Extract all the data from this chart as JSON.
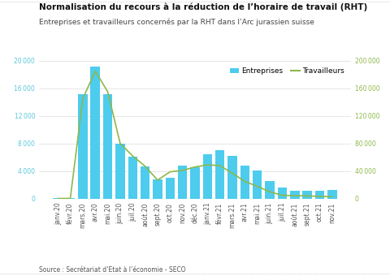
{
  "title": "Normalisation du recours à la réduction de l’horaire de travail (RHT)",
  "subtitle": "Entreprises et travailleurs concernés par la RHT dans l’Arc jurassien suisse",
  "source": "Source : Secrétariat d’Etat à l’économie - SECO",
  "labels": [
    "janv.20",
    "févr.20",
    "mars.20",
    "avr.20",
    "mai.20",
    "juin.20",
    "juil.20",
    "août.20",
    "sept.20",
    "oct.20",
    "nov.20",
    "déc.20",
    "janv.21",
    "févr.21",
    "mars.21",
    "avr.21",
    "mai.21",
    "juin.21",
    "juil.21",
    "août.21",
    "sept.21",
    "oct.21",
    "nov.21"
  ],
  "entreprises": [
    100,
    150,
    15200,
    19200,
    15200,
    8000,
    6100,
    4700,
    2800,
    3000,
    4800,
    4600,
    6400,
    7000,
    6200,
    4800,
    4100,
    2600,
    1600,
    1100,
    1100,
    1100,
    1300
  ],
  "travailleurs": [
    300,
    500,
    145000,
    185000,
    155000,
    80000,
    62000,
    47000,
    27000,
    39000,
    41000,
    46000,
    49000,
    48000,
    37000,
    25000,
    18000,
    10000,
    5000,
    4500,
    4000,
    3500,
    3000
  ],
  "bar_color": "#4DCCEE",
  "line_color": "#8DB84A",
  "left_ylim": [
    0,
    20000
  ],
  "right_ylim": [
    0,
    200000
  ],
  "left_yticks": [
    0,
    4000,
    8000,
    12000,
    16000,
    20000
  ],
  "right_yticks": [
    0,
    40000,
    80000,
    120000,
    160000,
    200000
  ],
  "title_fontsize": 7.5,
  "subtitle_fontsize": 6.5,
  "tick_fontsize": 5.5,
  "legend_fontsize": 6.5,
  "source_fontsize": 5.5,
  "ytick_color_left": "#5BC8DC",
  "ytick_color_right": "#8DB84A"
}
